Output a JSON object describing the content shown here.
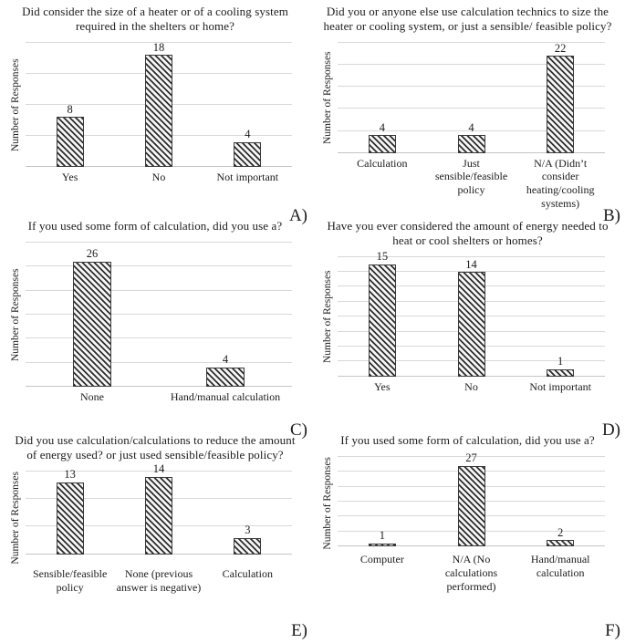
{
  "colors": {
    "background": "#ffffff",
    "text": "#1b1b1b",
    "gridline": "#d8d8d8",
    "axis_line": "#c4c4c4",
    "bar_hatch": "#2d2d2d",
    "bar_background": "#f5f5f5",
    "bar_border": "#3a3a3a"
  },
  "chart_data": [
    {
      "panel_label": "A)",
      "type": "bar",
      "title": "Did consider the size of a heater or of a cooling system required in the shelters or home?",
      "ylabel": "Number of Responses",
      "categories": [
        "Yes",
        "No",
        "Not important"
      ],
      "values": [
        8,
        18,
        4
      ],
      "ylim": [
        0,
        20
      ],
      "grid_step": 5,
      "grid": true,
      "legend": "none",
      "bar_hatch_direction": "backslash"
    },
    {
      "panel_label": "B)",
      "type": "bar",
      "title": "Did you or anyone else use calculation technics to size the heater or cooling system, or just a sensible/ feasible policy?",
      "ylabel": "Number of Responses",
      "categories": [
        "Calculation",
        "Just sensible/feasible policy",
        "N/A (Didn’t consider heating/cooling systems)"
      ],
      "values": [
        4,
        4,
        22
      ],
      "ylim": [
        0,
        25
      ],
      "grid_step": 5,
      "grid": true,
      "legend": "none",
      "bar_hatch_direction": "backslash"
    },
    {
      "panel_label": "C)",
      "type": "bar",
      "title": "If you used some form of calculation, did you use a?",
      "ylabel": "Number of Responses",
      "categories": [
        "None",
        "Hand/manual calculation"
      ],
      "values": [
        26,
        4
      ],
      "ylim": [
        0,
        30
      ],
      "grid_step": 5,
      "grid": true,
      "legend": "none",
      "bar_hatch_direction": "backslash"
    },
    {
      "panel_label": "D)",
      "type": "bar",
      "title": "Have you ever considered the amount of energy needed to heat or cool shelters or homes?",
      "ylabel": "Number of Responses",
      "categories": [
        "Yes",
        "No",
        "Not important"
      ],
      "values": [
        15,
        14,
        1
      ],
      "ylim": [
        0,
        16
      ],
      "grid_step": 2,
      "grid": true,
      "legend": "none",
      "bar_hatch_direction": "backslash"
    },
    {
      "panel_label": "E)",
      "type": "bar",
      "title": "Did you use calculation/calculations to reduce the amount of energy used? or just used sensible/feasible policy?",
      "ylabel": "Number of Responses",
      "categories": [
        "Sensible/feasible policy",
        "None (previous answer is negative)",
        "Calculation"
      ],
      "values": [
        13,
        14,
        3
      ],
      "ylim": [
        0,
        15
      ],
      "grid_step": 5,
      "grid": true,
      "legend": "none",
      "bar_hatch_direction": "backslash"
    },
    {
      "panel_label": "F)",
      "type": "bar",
      "title": "If you used some form of calculation, did you use a?",
      "ylabel": "Number of Responses",
      "categories": [
        "Computer",
        "N/A (No calculations performed)",
        "Hand/manual calculation"
      ],
      "values": [
        1,
        27,
        2
      ],
      "ylim": [
        0,
        30
      ],
      "grid_step": 5,
      "grid": true,
      "legend": "none",
      "bar_hatch_direction": "backslash"
    }
  ]
}
